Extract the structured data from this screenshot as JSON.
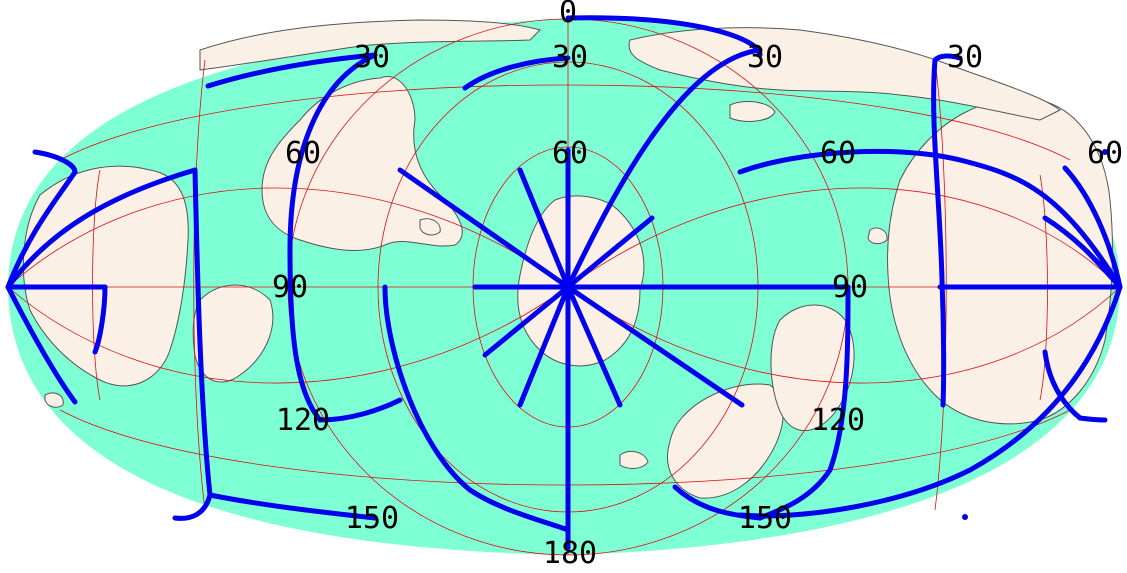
{
  "map": {
    "colors": {
      "ocean": "#7fffd4",
      "land": "#faf0e6",
      "coast": "#555555",
      "graticule": "#dd1111",
      "highlight": "#0000ee"
    },
    "labels": [
      {
        "id": "label-0",
        "text": "0"
      },
      {
        "id": "label-30-a",
        "text": "30"
      },
      {
        "id": "label-30-b",
        "text": "30"
      },
      {
        "id": "label-30-c",
        "text": "30"
      },
      {
        "id": "label-30-d",
        "text": "30"
      },
      {
        "id": "label-60-a",
        "text": "60"
      },
      {
        "id": "label-60-b",
        "text": "60"
      },
      {
        "id": "label-60-c",
        "text": "60"
      },
      {
        "id": "label-60-d",
        "text": "60"
      },
      {
        "id": "label-90-a",
        "text": "90"
      },
      {
        "id": "label-90-b",
        "text": "90"
      },
      {
        "id": "label-120-a",
        "text": "120"
      },
      {
        "id": "label-120-b",
        "text": "120"
      },
      {
        "id": "label-150-a",
        "text": "150"
      },
      {
        "id": "label-150-b",
        "text": "150"
      },
      {
        "id": "label-180",
        "text": "180"
      }
    ]
  }
}
